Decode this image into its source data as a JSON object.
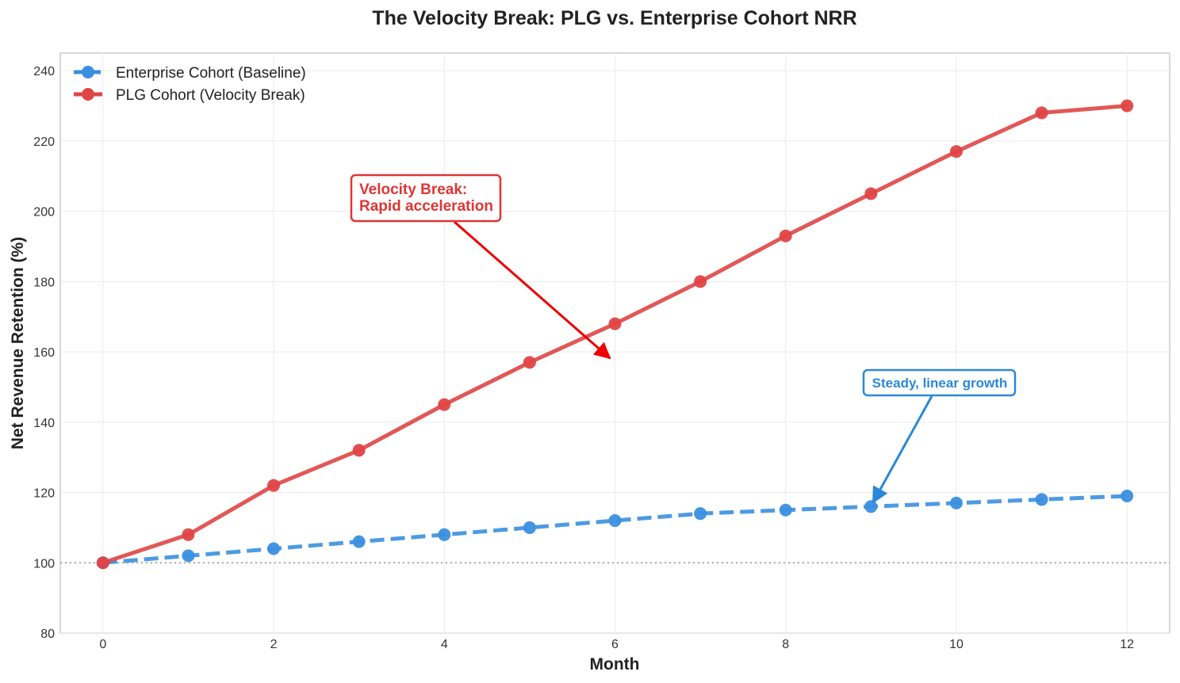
{
  "chart_data": {
    "type": "line",
    "title": "The Velocity Break: PLG vs. Enterprise Cohort NRR",
    "xlabel": "Month",
    "ylabel": "Net Revenue Retention (%)",
    "xlim": [
      -0.5,
      12.5
    ],
    "ylim": [
      80,
      245
    ],
    "x_ticks": [
      0,
      2,
      4,
      6,
      8,
      10,
      12
    ],
    "y_ticks": [
      80,
      100,
      120,
      140,
      160,
      180,
      200,
      220,
      240
    ],
    "grid": true,
    "legend_position": "top-left",
    "x": [
      0,
      1,
      2,
      3,
      4,
      5,
      6,
      7,
      8,
      9,
      10,
      11,
      12
    ],
    "series": [
      {
        "name": "Enterprise Cohort (Baseline)",
        "color": "#3a8fe0",
        "line_style": "dashed",
        "values": [
          100,
          102,
          104,
          106,
          108,
          110,
          112,
          114,
          115,
          116,
          117,
          118,
          119
        ]
      },
      {
        "name": "PLG Cohort (Velocity Break)",
        "color": "#e04545",
        "line_style": "solid",
        "values": [
          100,
          108,
          122,
          132,
          145,
          157,
          168,
          180,
          193,
          205,
          217,
          228,
          230
        ]
      }
    ],
    "reference_line": {
      "y": 100,
      "color": "#aaaaaa",
      "style": "dotted"
    },
    "annotations": [
      {
        "lines": [
          "Velocity Break:",
          "Rapid acceleration"
        ],
        "color": "#e03535",
        "arrow_color": "#ee0000",
        "target": [
          6,
          157.5
        ]
      },
      {
        "lines": [
          "Steady, linear growth"
        ],
        "color": "#2a88d8",
        "arrow_color": "#2a88d8",
        "target": [
          9,
          116
        ]
      }
    ]
  }
}
